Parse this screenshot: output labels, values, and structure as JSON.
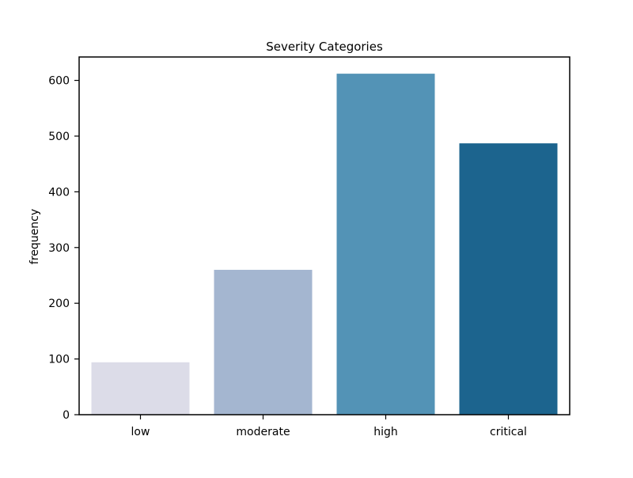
{
  "chart_data": {
    "type": "bar",
    "title": "Severity Categories",
    "xlabel": "",
    "ylabel": "frequency",
    "categories": [
      "low",
      "moderate",
      "high",
      "critical"
    ],
    "values": [
      94,
      260,
      612,
      487
    ],
    "colors": [
      "#dcdce8",
      "#a4b6d0",
      "#5393b6",
      "#1c648e"
    ],
    "ylim": [
      0,
      642
    ],
    "yticks": [
      0,
      100,
      200,
      300,
      400,
      500,
      600
    ],
    "grid": false,
    "legend": "none"
  }
}
